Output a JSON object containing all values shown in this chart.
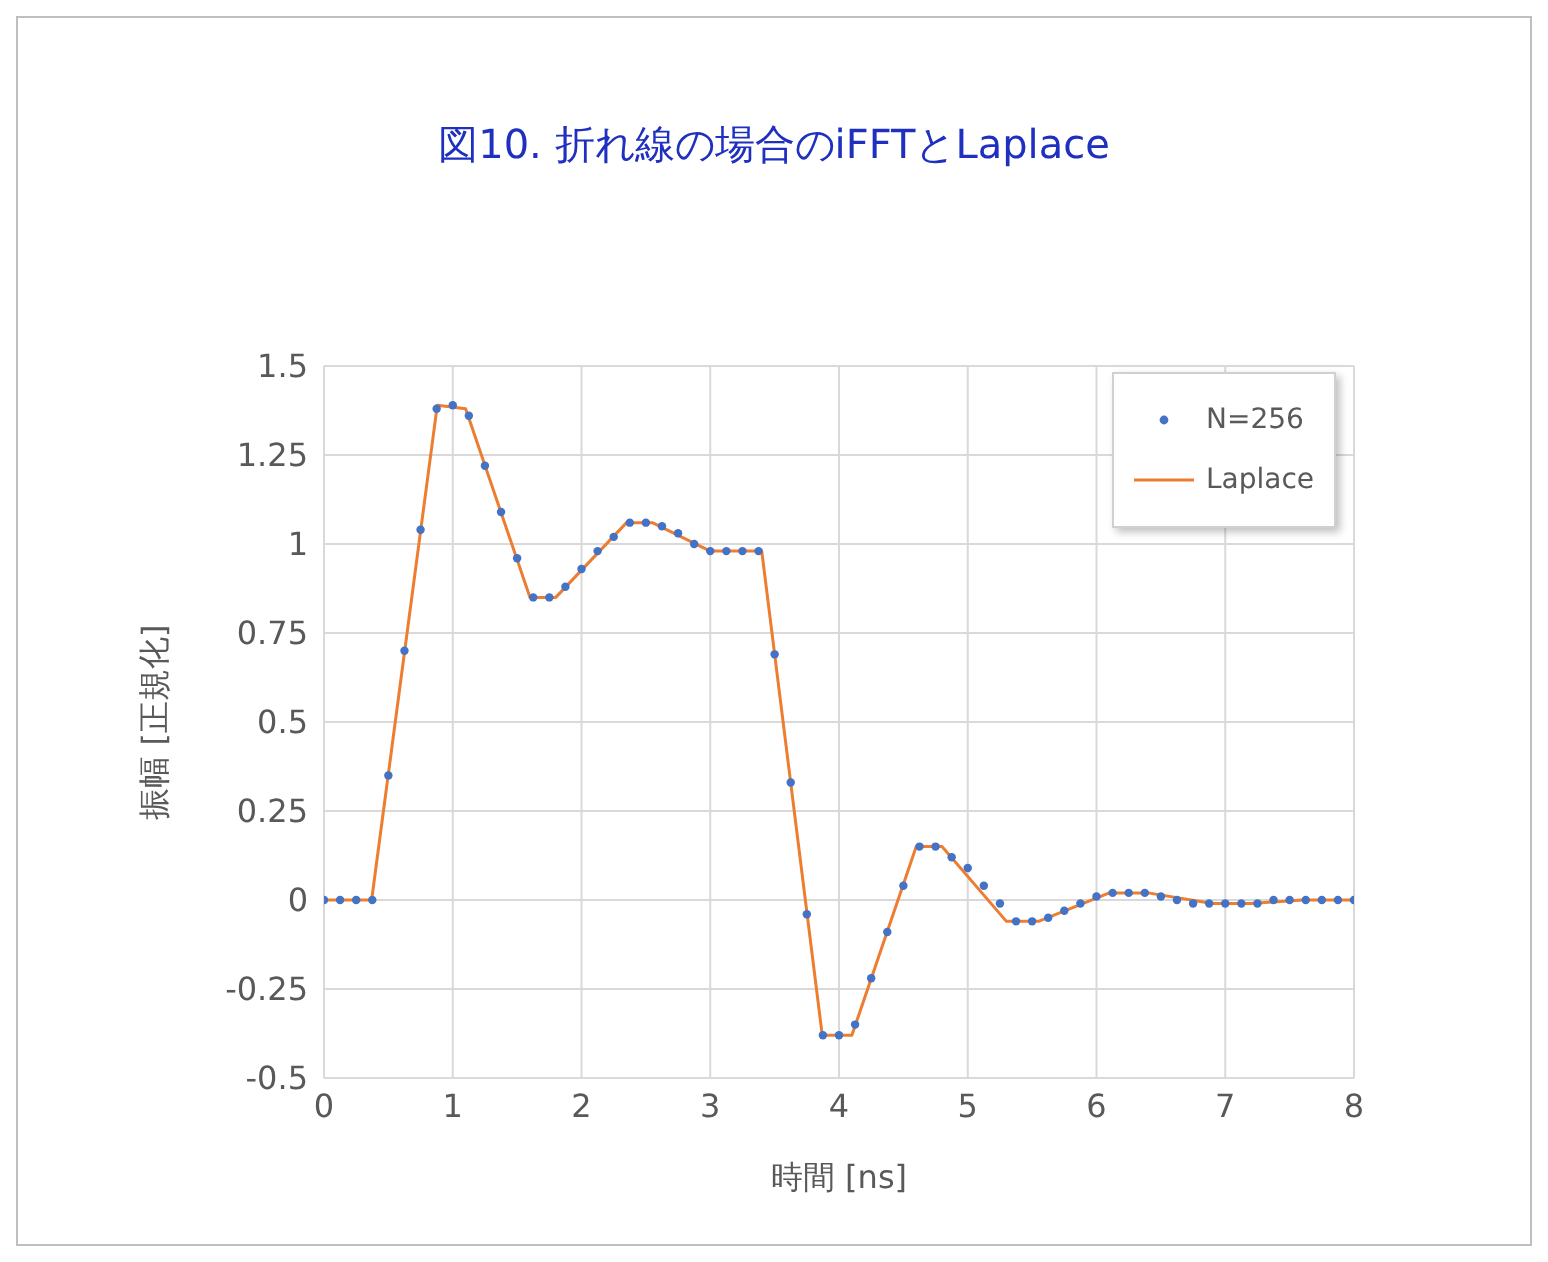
{
  "chart_data": {
    "type": "scatter",
    "title": "図10. 折れ線の場合のiFFTとLaplace",
    "xlabel": "時間 [ns]",
    "ylabel": "振幅 [正規化]",
    "xlim": [
      0,
      8
    ],
    "xticks": [
      0,
      1,
      2,
      3,
      4,
      5,
      6,
      7,
      8
    ],
    "ylim": [
      -0.5,
      1.5
    ],
    "yticks": [
      -0.5,
      -0.25,
      0,
      0.25,
      0.5,
      0.75,
      1,
      1.25,
      1.5
    ],
    "grid": true,
    "legend": "top right",
    "series": [
      {
        "name": "N=256",
        "marker": "circle",
        "color": "#4472c4",
        "x": [
          0,
          0.125,
          0.25,
          0.375,
          0.5,
          0.625,
          0.75,
          0.875,
          1,
          1.125,
          1.25,
          1.375,
          1.5,
          1.625,
          1.75,
          1.875,
          2,
          2.125,
          2.25,
          2.375,
          2.5,
          2.625,
          2.75,
          2.875,
          3,
          3.125,
          3.25,
          3.375,
          3.5,
          3.625,
          3.75,
          3.875,
          4,
          4.125,
          4.25,
          4.375,
          4.5,
          4.625,
          4.75,
          4.875,
          5,
          5.125,
          5.25,
          5.375,
          5.5,
          5.625,
          5.75,
          5.875,
          6,
          6.125,
          6.25,
          6.375,
          6.5,
          6.625,
          6.75,
          6.875,
          7,
          7.125,
          7.25,
          7.375,
          7.5,
          7.625,
          7.75,
          7.875,
          8
        ],
        "values": [
          0,
          0,
          0,
          0,
          0.35,
          0.7,
          1.04,
          1.38,
          1.39,
          1.36,
          1.22,
          1.09,
          0.96,
          0.85,
          0.85,
          0.88,
          0.93,
          0.98,
          1.02,
          1.06,
          1.06,
          1.05,
          1.03,
          1,
          0.98,
          0.98,
          0.98,
          0.98,
          0.69,
          0.33,
          -0.04,
          -0.38,
          -0.38,
          -0.35,
          -0.22,
          -0.09,
          0.04,
          0.15,
          0.15,
          0.12,
          0.09,
          0.04,
          -0.01,
          -0.06,
          -0.06,
          -0.05,
          -0.03,
          -0.01,
          0.01,
          0.02,
          0.02,
          0.02,
          0.01,
          0,
          -0.01,
          -0.01,
          -0.01,
          -0.01,
          -0.01,
          0,
          0,
          0,
          0,
          0,
          0
        ]
      },
      {
        "name": "Laplace",
        "type": "line",
        "marker": "none",
        "color": "#ed7d31",
        "x": [
          0,
          0.37,
          0.88,
          1.1,
          1.6,
          1.8,
          2.35,
          2.55,
          3,
          3.4,
          3.87,
          4.1,
          4.6,
          4.8,
          5.3,
          5.55,
          6.1,
          6.4,
          6.9,
          7.2,
          7.6,
          8
        ],
        "values": [
          0,
          0,
          1.39,
          1.38,
          0.85,
          0.85,
          1.06,
          1.06,
          0.98,
          0.98,
          -0.38,
          -0.38,
          0.15,
          0.15,
          -0.06,
          -0.06,
          0.02,
          0.02,
          -0.01,
          -0.01,
          0,
          0
        ]
      }
    ]
  }
}
